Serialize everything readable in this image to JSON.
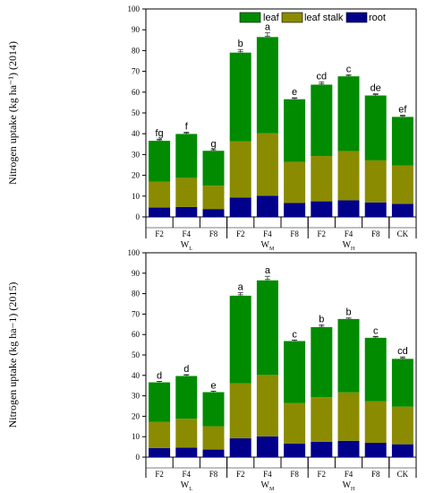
{
  "colors": {
    "root": "#00008b",
    "stalk": "#8b8b00",
    "leaf": "#008b00"
  },
  "legend": {
    "leaf": "leaf",
    "stalk": "leaf stalk",
    "root": "root"
  },
  "chart_data": [
    {
      "type": "bar",
      "stacked": true,
      "ylabel": "Nitrogen uptake (kg ha⁻¹) (2014)",
      "ylim": [
        0,
        100
      ],
      "yticks": [
        0,
        10,
        20,
        30,
        40,
        50,
        60,
        70,
        80,
        90,
        100
      ],
      "categories": [
        "F2",
        "F4",
        "F8",
        "F2",
        "F4",
        "F8",
        "F2",
        "F4",
        "F8",
        "CK"
      ],
      "groups": [
        {
          "name": "W",
          "sub": "L",
          "span": [
            0,
            2
          ]
        },
        {
          "name": "W",
          "sub": "M",
          "span": [
            3,
            5
          ]
        },
        {
          "name": "W",
          "sub": "H",
          "span": [
            6,
            8
          ]
        }
      ],
      "series": [
        {
          "name": "root",
          "values": [
            4.5,
            4.8,
            3.8,
            9.3,
            10.2,
            6.7,
            7.5,
            8.0,
            7.0,
            6.3
          ]
        },
        {
          "name": "leaf stalk",
          "values": [
            12.5,
            14.0,
            11.2,
            27.0,
            30.0,
            19.7,
            21.8,
            23.7,
            20.2,
            18.5
          ]
        },
        {
          "name": "leaf",
          "values": [
            19.6,
            21.1,
            16.8,
            42.7,
            46.3,
            30.2,
            34.3,
            35.9,
            31.2,
            23.3
          ]
        }
      ],
      "totals": [
        36.6,
        39.9,
        31.8,
        79.0,
        86.5,
        56.6,
        63.6,
        67.6,
        58.4,
        48.1
      ],
      "errors": [
        0.8,
        0.9,
        0.5,
        1.5,
        2.0,
        0.7,
        1.3,
        0.7,
        0.8,
        0.8
      ],
      "letters": [
        "fg",
        "f",
        "g",
        "b",
        "a",
        "e",
        "cd",
        "c",
        "de",
        "ef"
      ],
      "legend_position": "top-right"
    },
    {
      "type": "bar",
      "stacked": true,
      "ylabel": "Nitrogen uptake (kg ha−1) (2015)",
      "ylim": [
        0,
        100
      ],
      "yticks": [
        0,
        10,
        20,
        30,
        40,
        50,
        60,
        70,
        80,
        90,
        100
      ],
      "categories": [
        "F2",
        "F4",
        "F8",
        "F2",
        "F4",
        "F8",
        "F2",
        "F4",
        "F8",
        "CK"
      ],
      "groups": [
        {
          "name": "W",
          "sub": "L",
          "span": [
            0,
            2
          ]
        },
        {
          "name": "W",
          "sub": "M",
          "span": [
            3,
            5
          ]
        },
        {
          "name": "W",
          "sub": "H",
          "span": [
            6,
            8
          ]
        }
      ],
      "series": [
        {
          "name": "root",
          "values": [
            4.4,
            4.7,
            3.7,
            9.2,
            10.2,
            6.7,
            7.5,
            8.0,
            7.0,
            6.3
          ]
        },
        {
          "name": "leaf stalk",
          "values": [
            12.8,
            14.1,
            11.4,
            27.0,
            30.0,
            19.8,
            21.8,
            23.7,
            20.3,
            18.4
          ]
        },
        {
          "name": "leaf",
          "values": [
            19.4,
            20.9,
            16.7,
            42.8,
            46.3,
            30.3,
            34.3,
            35.9,
            31.1,
            23.4
          ]
        }
      ],
      "totals": [
        36.6,
        39.7,
        31.8,
        79.0,
        86.5,
        56.8,
        63.6,
        67.6,
        58.4,
        48.1
      ],
      "errors": [
        0.5,
        0.7,
        0.5,
        1.5,
        2.0,
        0.5,
        1.2,
        0.5,
        0.7,
        1.0
      ],
      "letters": [
        "d",
        "d",
        "e",
        "a",
        "a",
        "c",
        "b",
        "b",
        "c",
        "cd"
      ]
    }
  ]
}
